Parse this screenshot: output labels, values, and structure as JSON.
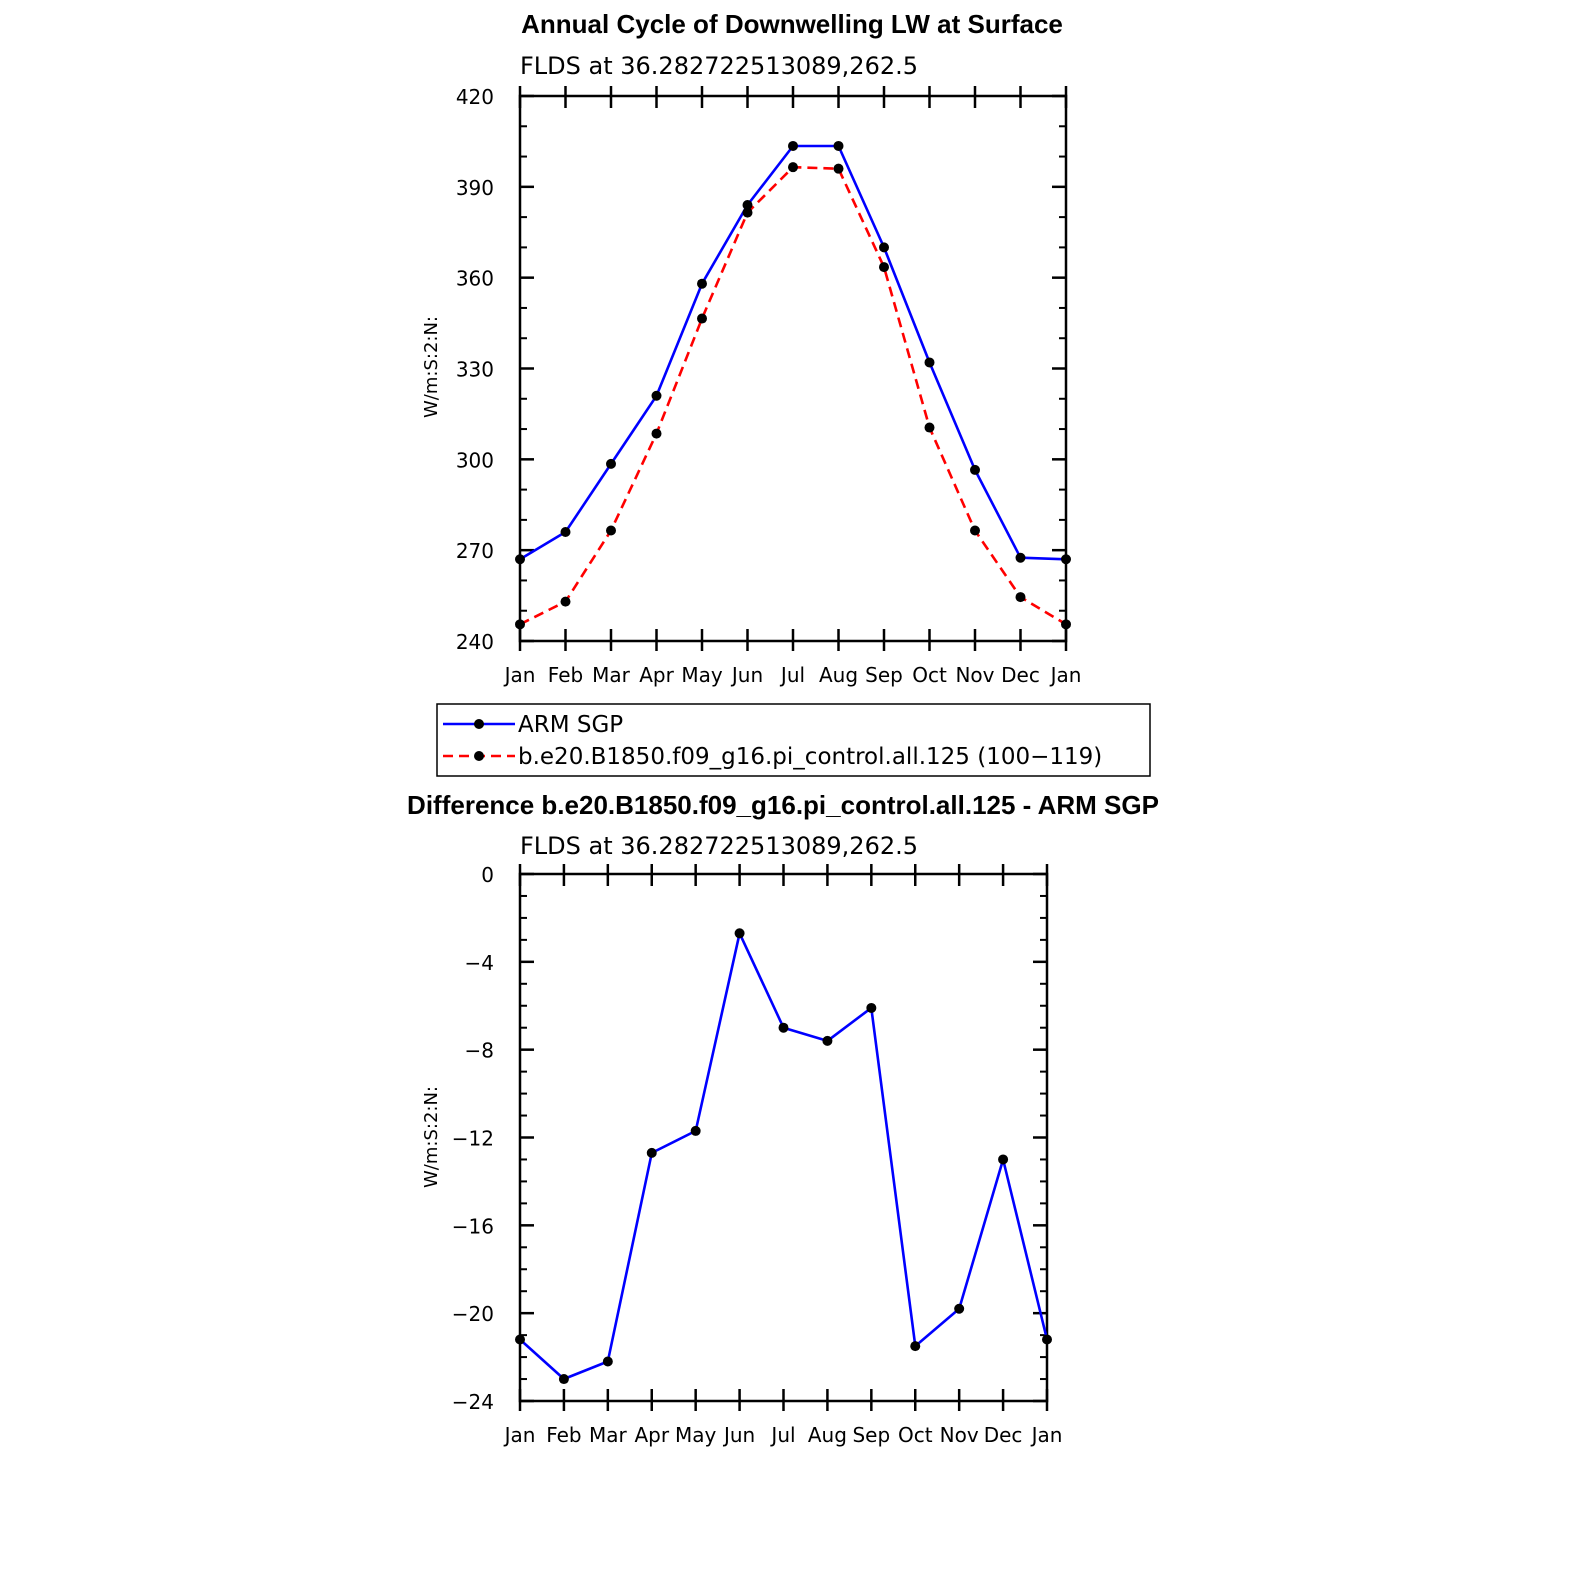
{
  "chart_data": [
    {
      "type": "line",
      "title": "Annual Cycle of Downwelling LW at Surface",
      "subtitle": "FLDS  at  36.282722513089,262.5",
      "ylabel": "W/m:S:2:N:",
      "xlabel": "",
      "categories": [
        "Jan",
        "Feb",
        "Mar",
        "Apr",
        "May",
        "Jun",
        "Jul",
        "Aug",
        "Sep",
        "Oct",
        "Nov",
        "Dec",
        "Jan"
      ],
      "ylim": [
        240,
        420
      ],
      "yticks": [
        "240",
        "270",
        "300",
        "330",
        "360",
        "390",
        "420"
      ],
      "yticks_values": [
        240,
        270,
        300,
        330,
        360,
        390,
        420
      ],
      "series": [
        {
          "name": "ARM SGP",
          "color": "#0000ff",
          "dash": "solid",
          "values": [
            267,
            276,
            298.5,
            321,
            358,
            384,
            403.5,
            403.5,
            370,
            332,
            296.5,
            267.5,
            267
          ]
        },
        {
          "name": "b.e20.B1850.f09_g16.pi_control.all.125 (100−119)",
          "color": "#ff0000",
          "dash": "dashed",
          "values": [
            245.5,
            253,
            276.5,
            308.5,
            346.5,
            381.5,
            396.5,
            396,
            363.5,
            310.5,
            276.5,
            254.5,
            245.5
          ]
        }
      ],
      "legend": "below"
    },
    {
      "type": "line",
      "title": "Difference b.e20.B1850.f09_g16.pi_control.all.125 - ARM SGP",
      "subtitle": "FLDS  at  36.282722513089,262.5",
      "ylabel": "W/m:S:2:N:",
      "xlabel": "",
      "categories": [
        "Jan",
        "Feb",
        "Mar",
        "Apr",
        "May",
        "Jun",
        "Jul",
        "Aug",
        "Sep",
        "Oct",
        "Nov",
        "Dec",
        "Jan"
      ],
      "ylim": [
        -24,
        0
      ],
      "yticks": [
        "−24",
        "−20",
        "−16",
        "−12",
        "−8",
        "−4",
        "0"
      ],
      "yticks_values": [
        -24,
        -20,
        -16,
        -12,
        -8,
        -4,
        0
      ],
      "series": [
        {
          "color": "#0000ff",
          "dash": "solid",
          "values": [
            -21.2,
            -23.0,
            -22.2,
            -12.7,
            -11.7,
            -2.7,
            -7.0,
            -7.6,
            -6.1,
            -21.5,
            -19.8,
            -13.0,
            -21.2
          ]
        }
      ]
    }
  ]
}
